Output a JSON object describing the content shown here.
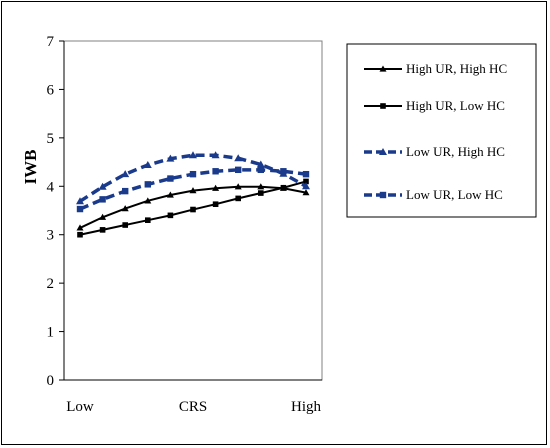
{
  "chart_data": {
    "type": "line",
    "title": "",
    "xlabel": "CRS",
    "ylabel": "IWB",
    "ylim": [
      0,
      7
    ],
    "yticks": [
      "0",
      "1",
      "2",
      "3",
      "4",
      "5",
      "6",
      "7"
    ],
    "x_tick_labels": [
      {
        "label": "Low",
        "at": 0
      },
      {
        "label": "CRS",
        "at": 0.5
      },
      {
        "label": "High",
        "at": 1
      }
    ],
    "grid": false,
    "legend_position": "right",
    "x": [
      0,
      0.1,
      0.2,
      0.3,
      0.4,
      0.5,
      0.6,
      0.7,
      0.8,
      0.9,
      1.0
    ],
    "series": [
      {
        "name": "High UR, High HC",
        "color": "#000000",
        "line_style": "solid",
        "marker": "triangle",
        "values": [
          3.14,
          3.36,
          3.54,
          3.7,
          3.82,
          3.91,
          3.96,
          3.99,
          3.99,
          3.96,
          3.87
        ]
      },
      {
        "name": "High UR, Low HC",
        "color": "#000000",
        "line_style": "solid",
        "marker": "square",
        "values": [
          3.0,
          3.1,
          3.2,
          3.3,
          3.4,
          3.52,
          3.63,
          3.75,
          3.86,
          3.97,
          4.1
        ]
      },
      {
        "name": "Low UR, High HC",
        "color": "#1a3a8c",
        "line_style": "dashed",
        "marker": "triangle",
        "values": [
          3.69,
          3.99,
          4.25,
          4.44,
          4.57,
          4.64,
          4.64,
          4.58,
          4.45,
          4.26,
          4.0
        ]
      },
      {
        "name": "Low UR, Low HC",
        "color": "#1a3a8c",
        "line_style": "dashed",
        "marker": "square",
        "values": [
          3.53,
          3.73,
          3.9,
          4.04,
          4.16,
          4.25,
          4.31,
          4.34,
          4.34,
          4.31,
          4.25
        ]
      }
    ]
  }
}
